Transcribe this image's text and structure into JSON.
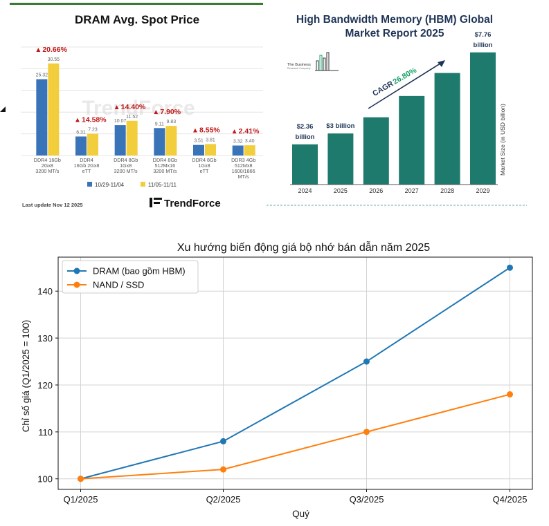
{
  "colors": {
    "dram_bar": "#3a74b8",
    "dram_bar2": "#f2ce3c",
    "growth_red": "#c01818",
    "hbm_bar": "#1f7a6e",
    "hbm_title": "#1f3557",
    "cagr_green": "#1aa06a",
    "line_dram": "#1f77b4",
    "line_nand": "#ff7f0e",
    "topline_green": "#3a7a34"
  },
  "chart_data": [
    {
      "type": "bar",
      "title": "DRAM Avg. Spot Price",
      "categories": [
        [
          "DDR4 16Gb",
          "2Gx8",
          "3200 MT/s"
        ],
        [
          "DDR4",
          "16Gb 2Gx8",
          "eTT"
        ],
        [
          "DDR4 8Gb",
          "1Gx8",
          "3200 MT/s"
        ],
        [
          "DDR4 8Gb",
          "512Mx16",
          "3200 MT/s"
        ],
        [
          "DDR4 8Gb",
          "1Gx8",
          "eTT"
        ],
        [
          "DDR3 4Gb",
          "512Mx8",
          "1600/1866",
          "MT/s"
        ]
      ],
      "series": [
        {
          "name": "10/29-11/04",
          "values": [
            25.32,
            6.31,
            10.07,
            9.11,
            3.51,
            3.32
          ],
          "labels": [
            "25.32",
            "6.31",
            "10.07",
            "9.11",
            "3.51",
            "3.32"
          ]
        },
        {
          "name": "11/05-11/11",
          "values": [
            30.55,
            7.23,
            11.52,
            9.83,
            3.81,
            3.4
          ],
          "labels": [
            "30.55",
            "7.23",
            "11.52",
            "9.83",
            "3.81",
            "3.40"
          ]
        }
      ],
      "growth_labels": [
        "20.66%",
        "14.58%",
        "14.40%",
        "7.90%",
        "8.55%",
        "2.41%"
      ],
      "ylim": [
        0,
        36
      ],
      "footer": "Last update Nov 12  2025",
      "logo_text": "TrendForce",
      "watermark": "TrendForce",
      "legend_placement": "bottom",
      "grid": true
    },
    {
      "type": "bar",
      "title": "High Bandwidth Memory (HBM) Global",
      "subtitle": "Market Report 2025",
      "categories": [
        "2024",
        "2025",
        "2026",
        "2027",
        "2028",
        "2029"
      ],
      "values": [
        2.36,
        3.0,
        3.95,
        5.2,
        6.55,
        7.76
      ],
      "value_labels": [
        [
          "$2.36",
          "billion"
        ],
        [
          "$3 billion"
        ],
        [],
        [],
        [],
        [
          "$7.76",
          "billion"
        ]
      ],
      "ylabel": "Market Size (in USD billion)",
      "cagr_label": "CAGR",
      "cagr_value": "26.80%",
      "logo_text": [
        "The Business",
        "Research Company"
      ],
      "ylim": [
        0,
        8.4
      ]
    },
    {
      "type": "line",
      "title": "Xu hướng biến động giá bộ nhớ bán dẫn năm 2025",
      "xlabel": "Quý",
      "ylabel": "Chỉ số giá (Q1/2025 = 100)",
      "categories": [
        "Q1/2025",
        "Q2/2025",
        "Q3/2025",
        "Q4/2025"
      ],
      "series": [
        {
          "name": "DRAM (bao gồm HBM)",
          "values": [
            100,
            108,
            125,
            145
          ]
        },
        {
          "name": "NAND / SSD",
          "values": [
            100,
            102,
            110,
            118
          ]
        }
      ],
      "ylim": [
        97.75,
        147.25
      ],
      "yticks": [
        100,
        110,
        120,
        130,
        140
      ],
      "legend_placement": "top-left",
      "grid": true
    }
  ]
}
